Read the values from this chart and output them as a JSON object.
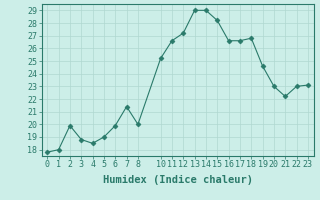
{
  "x": [
    0,
    1,
    2,
    3,
    4,
    5,
    6,
    7,
    8,
    10,
    11,
    12,
    13,
    14,
    15,
    16,
    17,
    18,
    19,
    20,
    21,
    22,
    23
  ],
  "y": [
    17.8,
    18.0,
    19.9,
    18.8,
    18.5,
    19.0,
    19.9,
    21.4,
    20.0,
    25.2,
    26.6,
    27.2,
    29.0,
    29.0,
    28.2,
    26.6,
    26.6,
    26.8,
    24.6,
    23.0,
    22.2,
    23.0,
    23.1
  ],
  "line_color": "#2a7a6a",
  "marker": "D",
  "marker_size": 2.5,
  "bg_color": "#cceee8",
  "grid_color": "#b0d8d0",
  "xlabel": "Humidex (Indice chaleur)",
  "ylim": [
    17.5,
    29.5
  ],
  "yticks": [
    18,
    19,
    20,
    21,
    22,
    23,
    24,
    25,
    26,
    27,
    28,
    29
  ],
  "xticks": [
    0,
    1,
    2,
    3,
    4,
    5,
    6,
    7,
    8,
    10,
    11,
    12,
    13,
    14,
    15,
    16,
    17,
    18,
    19,
    20,
    21,
    22,
    23
  ],
  "xlim": [
    -0.5,
    23.5
  ],
  "xlabel_fontsize": 7.5,
  "tick_fontsize": 6,
  "tick_color": "#2a7a6a",
  "spine_color": "#2a7a6a"
}
